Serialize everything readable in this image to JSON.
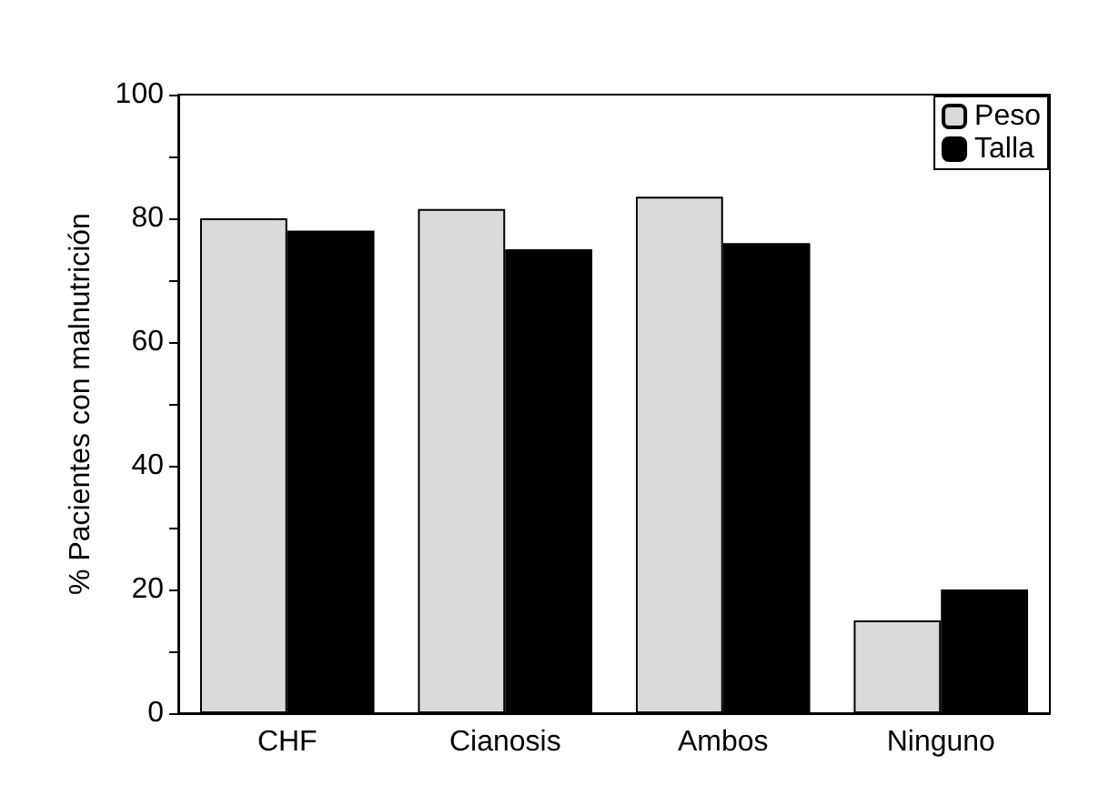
{
  "chart_data": {
    "type": "bar",
    "ylabel": "% Pacientes con malnutrición",
    "categories": [
      "CHF",
      "Cianosis",
      "Ambos",
      "Ninguno"
    ],
    "series": [
      {
        "name": "Peso",
        "color": "#d9dadb",
        "values": [
          80,
          81.5,
          83.5,
          15
        ]
      },
      {
        "name": "Talla",
        "color": "#000000",
        "values": [
          78,
          75,
          76,
          20
        ]
      }
    ],
    "ylim": [
      0,
      100
    ],
    "yticks": [
      0,
      {
        "value": 10,
        "label": null
      },
      20,
      {
        "value": 30,
        "label": null
      },
      40,
      {
        "value": 50,
        "label": null
      },
      60,
      {
        "value": 70,
        "label": null
      },
      80,
      {
        "value": 90,
        "label": null
      },
      100
    ],
    "grid": false,
    "legend": "top right"
  }
}
